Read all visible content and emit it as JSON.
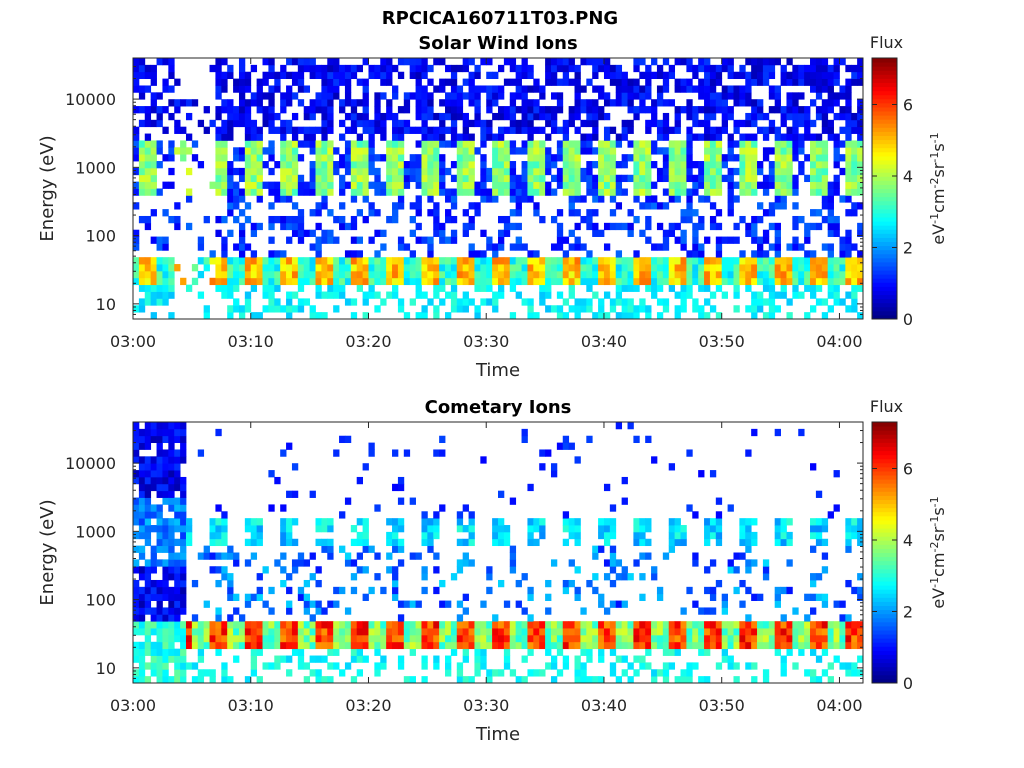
{
  "figure_title": "RPCICA160711T03.PNG",
  "chart_data": [
    {
      "type": "heatmap",
      "title": "Solar Wind Ions",
      "xlabel": "Time",
      "ylabel": "Energy (eV)",
      "y_scale": "log",
      "ylim": [
        6,
        40000
      ],
      "xlim": [
        "03:00",
        "04:02"
      ],
      "x_ticks": [
        "03:00",
        "03:10",
        "03:20",
        "03:30",
        "03:40",
        "03:50",
        "04:00"
      ],
      "y_ticks": [
        "10",
        "100",
        "1000",
        "10000"
      ],
      "colorbar": {
        "title": "Flux",
        "label": "eV-1cm-2sr-1s-1",
        "range": [
          0,
          7.3
        ],
        "ticks": [
          "0",
          "2",
          "4",
          "6"
        ],
        "colormap": "jet"
      },
      "features": {
        "pulse_period_min": 3.0,
        "low_energy_band_eV": [
          20,
          45
        ],
        "low_energy_band_flux": 5,
        "mid_energy_band_eV": [
          400,
          2500
        ],
        "mid_energy_band_flux": 3.5,
        "high_energy_background_eV": [
          2500,
          40000
        ],
        "high_energy_background_flux": 1
      }
    },
    {
      "type": "heatmap",
      "title": "Cometary Ions",
      "xlabel": "Time",
      "ylabel": "Energy (eV)",
      "y_scale": "log",
      "ylim": [
        6,
        40000
      ],
      "xlim": [
        "03:00",
        "04:02"
      ],
      "x_ticks": [
        "03:00",
        "03:10",
        "03:20",
        "03:30",
        "03:40",
        "03:50",
        "04:00"
      ],
      "y_ticks": [
        "10",
        "100",
        "1000",
        "10000"
      ],
      "colorbar": {
        "title": "Flux",
        "label": "eV-1cm-2sr-1s-1",
        "range": [
          0,
          7.3
        ],
        "ticks": [
          "0",
          "2",
          "4",
          "6"
        ],
        "colormap": "jet"
      },
      "features": {
        "pulse_period_min": 3.0,
        "low_energy_band_eV": [
          18,
          45
        ],
        "low_energy_band_flux": 6,
        "mid_energy_band_eV": [
          600,
          1500
        ],
        "mid_energy_band_flux": 2.5,
        "early_broadband_until_min": 4.3,
        "early_broadband_flux": 1
      }
    }
  ]
}
